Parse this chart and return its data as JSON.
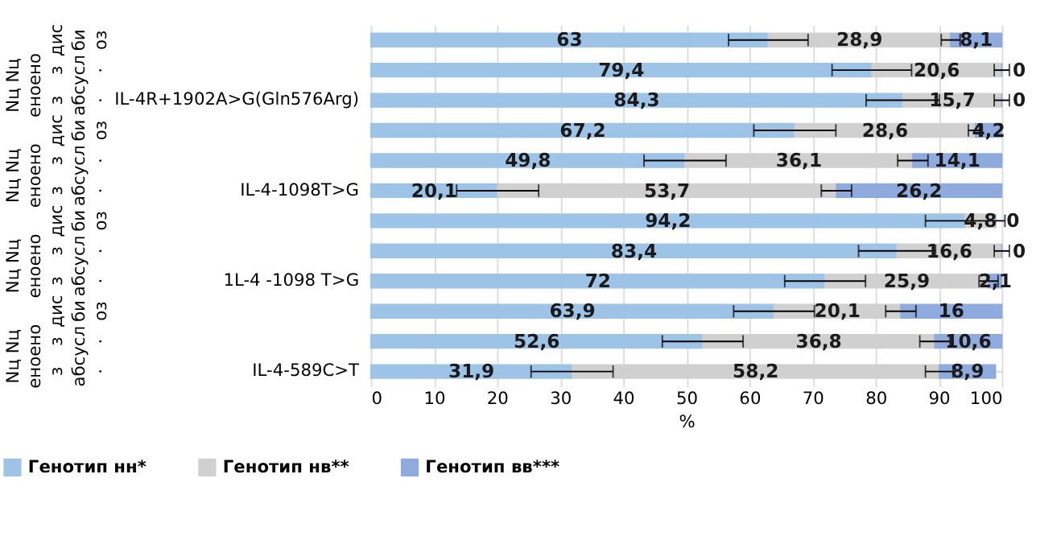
{
  "chart_data": {
    "type": "bar",
    "orientation": "horizontal",
    "stacked": true,
    "categories": [
      null,
      null,
      "IL-4R+1902A>G(Gln576Arg)",
      null,
      null,
      "IL-4-1098T>G",
      null,
      null,
      "1L-4 -1098 T>G",
      null,
      null,
      "IL-4-589C>T"
    ],
    "series": [
      {
        "name": "Генотип нн*",
        "color": "#9dc3e6",
        "values": [
          63,
          79.4,
          84.3,
          67.2,
          49.8,
          20.1,
          94.2,
          83.4,
          72,
          63.9,
          52.6,
          31.9
        ],
        "errors": [
          6.3,
          6.3,
          5.8,
          6.5,
          6.5,
          6.5,
          6.3,
          6.1,
          6.4,
          6.4,
          6.4,
          6.5
        ],
        "value_labels": [
          "63",
          "79,4",
          "84,3",
          "67,2",
          "49,8",
          "20,1",
          "94,2",
          "83,4",
          "72",
          "63,9",
          "52,6",
          "31,9"
        ]
      },
      {
        "name": "Генотип нв**",
        "color": "#d0d0d0",
        "values": [
          28.9,
          20.6,
          15.7,
          28.6,
          36.1,
          53.7,
          4.8,
          16.6,
          25.9,
          20.1,
          36.8,
          58.2
        ],
        "errors": [
          1.5,
          1.2,
          1.2,
          1.1,
          2.4,
          2.4,
          null,
          1.2,
          1.5,
          2.4,
          2.4,
          2.2
        ],
        "value_labels": [
          "28,9",
          "20,6",
          "15,7",
          "28,6",
          "36,1",
          "53,7",
          "4,8",
          "16,6",
          "25,9",
          "20,1",
          "36,8",
          "58,2"
        ]
      },
      {
        "name": "Генотип вв***",
        "color": "#8faadc",
        "values": [
          8.1,
          0,
          0,
          4.2,
          14.1,
          26.2,
          0,
          0,
          2.1,
          16,
          10.6,
          8.9
        ],
        "value_labels": [
          "8,1",
          "0",
          "0",
          "4,2",
          "14,1",
          "26,2",
          "0",
          "0",
          "2,1",
          "16",
          "10,6",
          "8,9"
        ]
      }
    ],
    "xlim": [
      0,
      100
    ],
    "xticks": [
      0,
      10,
      20,
      30,
      40,
      50,
      60,
      70,
      80,
      90,
      100
    ],
    "xlabel": "%",
    "grid": "x",
    "legend": "bottom",
    "annotations": [
      "Nц Nц",
      "еноено",
      "дис",
      "з",
      "з",
      "би",
      "абсусл",
      "оз",
      "·",
      "·",
      "Nц Nц",
      "еноено",
      "дис",
      "з",
      "з",
      "би",
      "абсусл",
      "оз",
      "·",
      "·",
      "Nц Nц",
      "еноено",
      "дис",
      "з",
      "з",
      "би",
      "абсусл",
      "оз",
      "·",
      "·",
      "Nц Nц",
      "еноено",
      "дис",
      "з",
      "з",
      "би",
      "абсусл",
      "оз",
      "·",
      "·"
    ]
  }
}
